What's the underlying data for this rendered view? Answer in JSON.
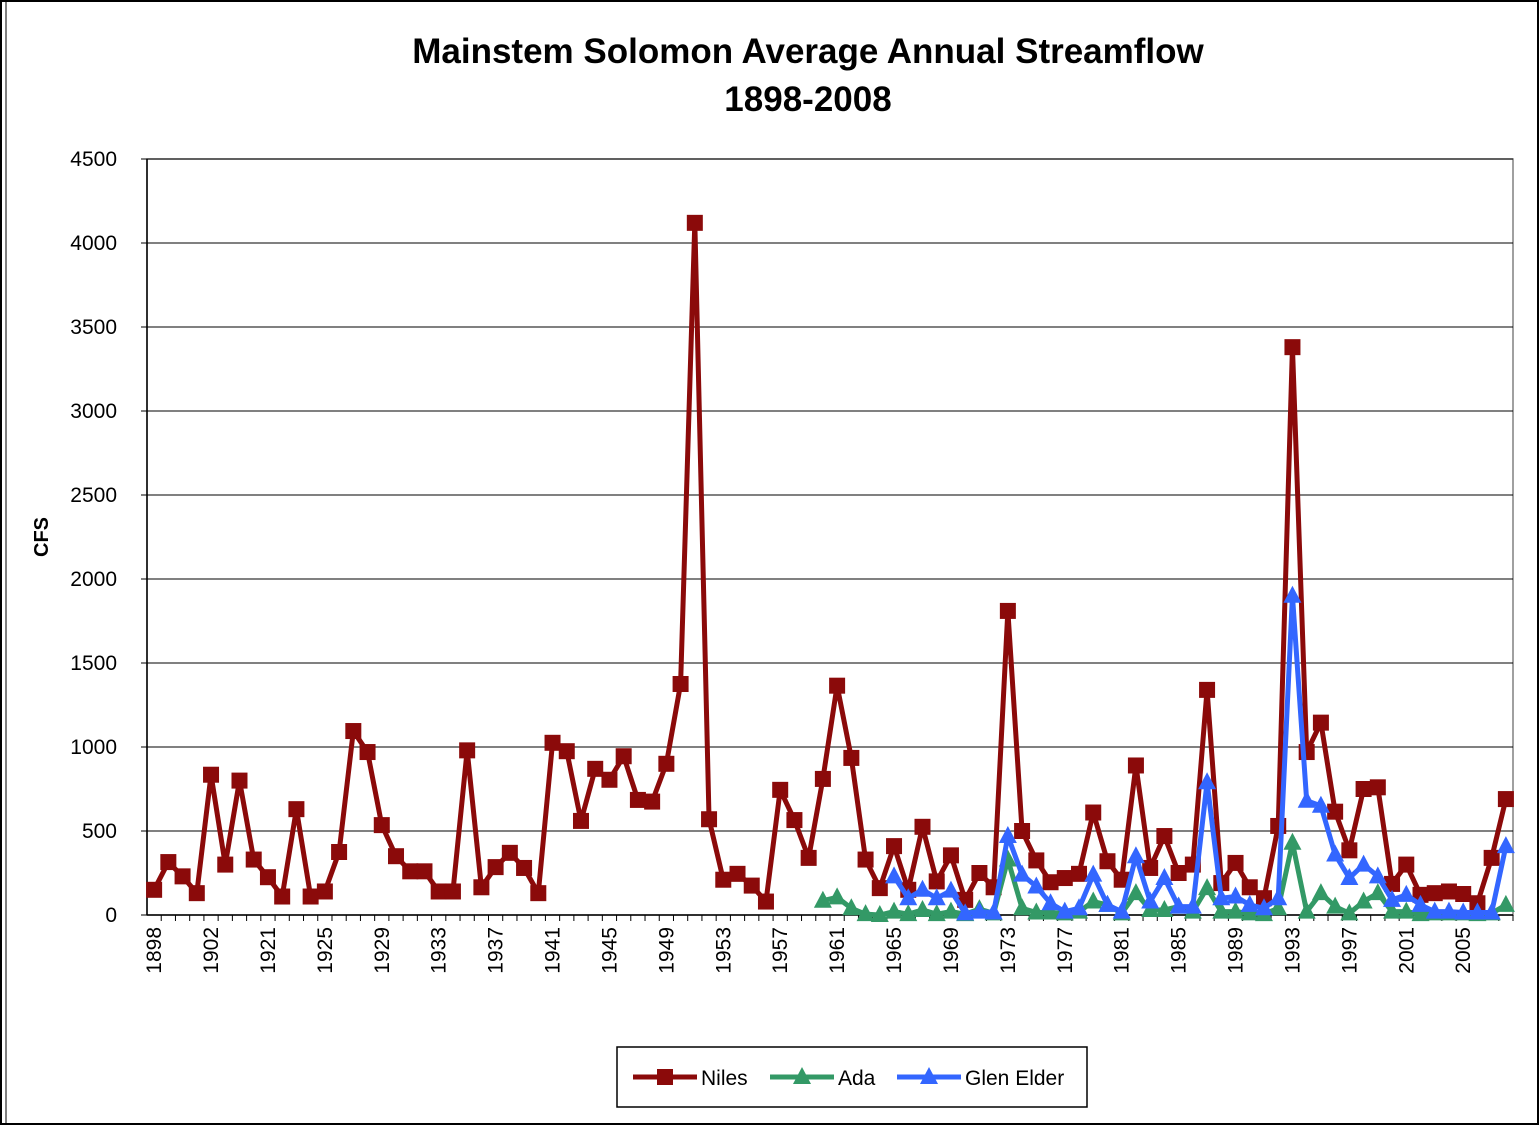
{
  "chart_data": {
    "type": "line",
    "title": "Mainstem Solomon Average Annual Streamflow",
    "subtitle": "1898-2008",
    "y_label": "CFS",
    "categories": [
      "1898",
      null,
      null,
      null,
      "1902",
      null,
      null,
      null,
      "1921",
      null,
      null,
      null,
      "1925",
      null,
      null,
      null,
      "1929",
      null,
      null,
      null,
      "1933",
      null,
      null,
      null,
      "1937",
      null,
      null,
      null,
      "1941",
      null,
      null,
      null,
      "1945",
      null,
      null,
      null,
      "1949",
      null,
      null,
      null,
      "1953",
      null,
      null,
      null,
      "1957",
      null,
      null,
      null,
      "1961",
      null,
      null,
      null,
      "1965",
      null,
      null,
      null,
      "1969",
      null,
      null,
      null,
      "1973",
      null,
      null,
      null,
      "1977",
      null,
      null,
      null,
      "1981",
      null,
      null,
      null,
      "1985",
      null,
      null,
      null,
      "1989",
      null,
      null,
      null,
      "1993",
      null,
      null,
      null,
      "1997",
      null,
      null,
      null,
      "2001",
      null,
      null,
      null,
      "2005",
      null,
      null,
      null
    ],
    "series": [
      {
        "name": "Niles",
        "color": "#8b0a0a",
        "marker": "square",
        "values": [
          150,
          315,
          230,
          130,
          835,
          300,
          800,
          330,
          225,
          110,
          630,
          110,
          140,
          375,
          1095,
          970,
          535,
          350,
          260,
          260,
          140,
          140,
          980,
          165,
          285,
          370,
          280,
          130,
          1025,
          975,
          560,
          870,
          805,
          945,
          685,
          675,
          900,
          1375,
          4120,
          570,
          210,
          245,
          175,
          80,
          745,
          565,
          340,
          810,
          1365,
          935,
          330,
          160,
          410,
          150,
          525,
          200,
          355,
          90,
          250,
          165,
          1810,
          500,
          325,
          195,
          220,
          245,
          610,
          320,
          210,
          890,
          280,
          470,
          250,
          300,
          1340,
          190,
          310,
          165,
          100,
          530,
          3380,
          970,
          1145,
          615,
          385,
          750,
          760,
          185,
          300,
          120,
          130,
          140,
          125,
          70,
          340,
          690
        ]
      },
      {
        "name": "Ada",
        "color": "#339966",
        "marker": "triangle",
        "values": [
          null,
          null,
          null,
          null,
          null,
          null,
          null,
          null,
          null,
          null,
          null,
          null,
          null,
          null,
          null,
          null,
          null,
          null,
          null,
          null,
          null,
          null,
          null,
          null,
          null,
          null,
          null,
          null,
          null,
          null,
          null,
          null,
          null,
          null,
          null,
          null,
          null,
          null,
          null,
          null,
          null,
          null,
          null,
          null,
          null,
          null,
          null,
          85,
          105,
          40,
          5,
          0,
          20,
          5,
          30,
          5,
          20,
          5,
          35,
          10,
          330,
          40,
          15,
          15,
          10,
          20,
          80,
          60,
          10,
          130,
          30,
          30,
          50,
          20,
          160,
          20,
          20,
          10,
          5,
          40,
          430,
          20,
          130,
          50,
          10,
          80,
          130,
          20,
          20,
          5,
          10,
          10,
          10,
          5,
          10,
          60
        ]
      },
      {
        "name": "Glen Elder",
        "color": "#3366ff",
        "marker": "triangle",
        "values": [
          null,
          null,
          null,
          null,
          null,
          null,
          null,
          null,
          null,
          null,
          null,
          null,
          null,
          null,
          null,
          null,
          null,
          null,
          null,
          null,
          null,
          null,
          null,
          null,
          null,
          null,
          null,
          null,
          null,
          null,
          null,
          null,
          null,
          null,
          null,
          null,
          null,
          null,
          null,
          null,
          null,
          null,
          null,
          null,
          null,
          null,
          null,
          null,
          null,
          null,
          null,
          null,
          230,
          100,
          150,
          100,
          145,
          10,
          20,
          15,
          470,
          240,
          170,
          70,
          20,
          40,
          240,
          60,
          20,
          350,
          80,
          220,
          50,
          50,
          790,
          100,
          110,
          60,
          40,
          100,
          1900,
          680,
          650,
          360,
          220,
          300,
          230,
          90,
          120,
          60,
          20,
          20,
          15,
          15,
          15,
          410
        ]
      }
    ],
    "ylim": [
      0,
      4500
    ],
    "yticks": [
      0,
      500,
      1000,
      1500,
      2000,
      2500,
      3000,
      3500,
      4000,
      4500
    ],
    "grid": true,
    "legend": "bottom"
  }
}
